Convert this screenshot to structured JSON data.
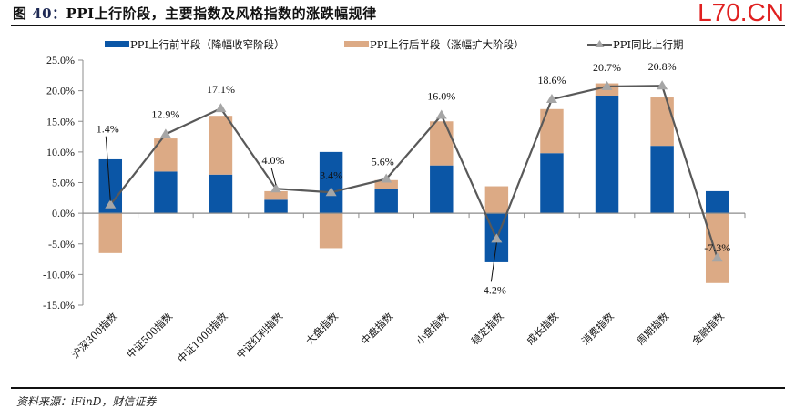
{
  "header": {
    "figure_prefix": "图 ",
    "figure_number": "40：",
    "title_text": "PPI上行阶段，主要指数及风格指数的涨跌幅规律",
    "watermark": "L70.CN"
  },
  "footer": {
    "source": "资料来源：iFinD，财信证券"
  },
  "colors": {
    "first_half": "#0b56a6",
    "second_half": "#dcaa85",
    "ppi_line": "#595959",
    "ppi_marker": "#a6a6a6",
    "axis": "#8c8c8c"
  },
  "chart_data": {
    "type": "bar",
    "stacked": true,
    "title": "PPI上行阶段，主要指数及风格指数的涨跌幅规律",
    "xlabel": "",
    "ylabel": "",
    "ylim": [
      -15,
      25
    ],
    "yticks": [
      -15,
      -10,
      -5,
      0,
      5,
      10,
      15,
      20,
      25
    ],
    "ytick_labels": [
      "-15.0%",
      "-10.0%",
      "-5.0%",
      "0.0%",
      "5.0%",
      "10.0%",
      "15.0%",
      "20.0%",
      "25.0%"
    ],
    "grid": false,
    "legend_position": "top",
    "categories": [
      "沪深300指数",
      "中证500指数",
      "中证1000指数",
      "中证红利指数",
      "大盘指数",
      "中盘指数",
      "小盘指数",
      "稳定指数",
      "成长指数",
      "消费指数",
      "周期指数",
      "金融指数"
    ],
    "series": [
      {
        "name": "PPI上行前半段（降幅收窄阶段）",
        "kind": "bar",
        "values": [
          8.8,
          6.8,
          6.3,
          2.2,
          10.0,
          3.9,
          7.8,
          -8.0,
          9.8,
          19.2,
          11.0,
          3.6
        ]
      },
      {
        "name": "PPI上行后半段（涨幅扩大阶段）",
        "kind": "bar",
        "values": [
          -6.5,
          5.4,
          9.6,
          1.4,
          -5.7,
          1.5,
          7.2,
          4.4,
          7.2,
          2.0,
          7.9,
          -11.4
        ]
      },
      {
        "name": "PPI同比上行期",
        "kind": "line",
        "values": [
          1.4,
          12.9,
          17.1,
          4.0,
          3.4,
          5.6,
          16.0,
          -4.2,
          18.6,
          20.7,
          20.8,
          -7.3
        ],
        "data_labels": [
          "1.4%",
          "12.9%",
          "17.1%",
          "4.0%",
          "3.4%",
          "5.6%",
          "16.0%",
          "-4.2%",
          "18.6%",
          "20.7%",
          "20.8%",
          "-7.3%"
        ]
      }
    ]
  }
}
